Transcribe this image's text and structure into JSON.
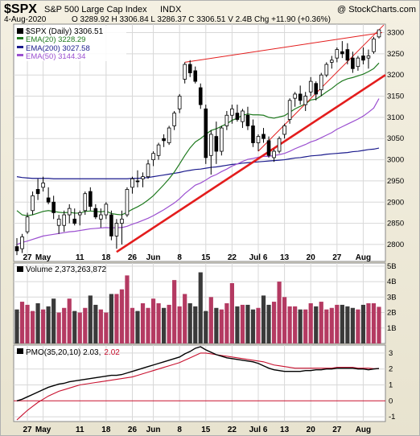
{
  "header": {
    "symbol": "$SPX",
    "name": "S&P 500 Large Cap Index",
    "exchange": "INDX",
    "copyright": "@ StockCharts.com",
    "date": "4-Aug-2020",
    "ohlc_text": "O 3289.92  H 3306.84  L 3286.37  C 3306.51  V 2.4B  Chg +11.90 (+0.36%)"
  },
  "legend": {
    "price": "$SPX (Daily) 3306.51",
    "ema20": "EMA(20) 3228.29",
    "ema200": "EMA(200) 3027.58",
    "ema50": "EMA(50) 3144.34",
    "volume": "Volume 2,373,263,872",
    "pmo": "PMO(35,20,10) 2.03,",
    "pmo_signal": "2.02"
  },
  "colors": {
    "up_candle": "#ffffff",
    "down_candle": "#000000",
    "ema20": "#1f7a1f",
    "ema200": "#1a1a8c",
    "ema50": "#9b4fd0",
    "trendline": "#e31c1c",
    "thin_channel": "#e31c1c",
    "vol_up": "#b43a62",
    "vol_down": "#3a3a3a",
    "pmo": "#000000",
    "pmo_signal": "#c8102e",
    "zero_line": "#c8102e"
  },
  "chart_data": {
    "type": "candlestick",
    "x_tick_labels": [
      "27",
      "May",
      "11",
      "18",
      "26",
      "Jun",
      "8",
      "15",
      "22",
      "Jul 6",
      "13",
      "20",
      "27",
      "Aug"
    ],
    "price_ticks": [
      "2800",
      "2850",
      "2900",
      "2950",
      "3000",
      "3050",
      "3100",
      "3150",
      "3200",
      "3250",
      "3300"
    ],
    "price_ylim": [
      2760,
      3320
    ],
    "candles": [
      {
        "o": 2795,
        "h": 2815,
        "l": 2775,
        "c": 2785
      },
      {
        "o": 2790,
        "h": 2825,
        "l": 2780,
        "c": 2818
      },
      {
        "o": 2830,
        "h": 2875,
        "l": 2825,
        "c": 2865
      },
      {
        "o": 2880,
        "h": 2925,
        "l": 2870,
        "c": 2915
      },
      {
        "o": 2930,
        "h": 2955,
        "l": 2905,
        "c": 2920
      },
      {
        "o": 2935,
        "h": 2960,
        "l": 2925,
        "c": 2945
      },
      {
        "o": 2910,
        "h": 2935,
        "l": 2895,
        "c": 2900
      },
      {
        "o": 2900,
        "h": 2915,
        "l": 2860,
        "c": 2875
      },
      {
        "o": 2845,
        "h": 2870,
        "l": 2825,
        "c": 2860
      },
      {
        "o": 2845,
        "h": 2880,
        "l": 2830,
        "c": 2870
      },
      {
        "o": 2870,
        "h": 2895,
        "l": 2850,
        "c": 2885
      },
      {
        "o": 2860,
        "h": 2885,
        "l": 2845,
        "c": 2850
      },
      {
        "o": 2870,
        "h": 2880,
        "l": 2845,
        "c": 2875
      },
      {
        "o": 2880,
        "h": 2925,
        "l": 2870,
        "c": 2920
      },
      {
        "o": 2925,
        "h": 2935,
        "l": 2880,
        "c": 2890
      },
      {
        "o": 2885,
        "h": 2895,
        "l": 2860,
        "c": 2865
      },
      {
        "o": 2860,
        "h": 2885,
        "l": 2840,
        "c": 2870
      },
      {
        "o": 2870,
        "h": 2900,
        "l": 2860,
        "c": 2895
      },
      {
        "o": 2870,
        "h": 2880,
        "l": 2810,
        "c": 2820
      },
      {
        "o": 2820,
        "h": 2860,
        "l": 2790,
        "c": 2850
      },
      {
        "o": 2850,
        "h": 2880,
        "l": 2800,
        "c": 2860
      },
      {
        "o": 2870,
        "h": 2935,
        "l": 2865,
        "c": 2930
      },
      {
        "o": 2935,
        "h": 2960,
        "l": 2920,
        "c": 2955
      },
      {
        "o": 2950,
        "h": 2975,
        "l": 2935,
        "c": 2948
      },
      {
        "o": 2955,
        "h": 2970,
        "l": 2935,
        "c": 2960
      },
      {
        "o": 2960,
        "h": 3000,
        "l": 2955,
        "c": 2990
      },
      {
        "o": 3000,
        "h": 3020,
        "l": 2985,
        "c": 3015
      },
      {
        "o": 3010,
        "h": 3040,
        "l": 3000,
        "c": 3035
      },
      {
        "o": 3050,
        "h": 3060,
        "l": 3030,
        "c": 3045
      },
      {
        "o": 3040,
        "h": 3080,
        "l": 3035,
        "c": 3075
      },
      {
        "o": 3080,
        "h": 3115,
        "l": 3070,
        "c": 3110
      },
      {
        "o": 3120,
        "h": 3155,
        "l": 3110,
        "c": 3150
      },
      {
        "o": 3190,
        "h": 3230,
        "l": 3180,
        "c": 3225
      },
      {
        "o": 3225,
        "h": 3235,
        "l": 3195,
        "c": 3205
      },
      {
        "o": 3210,
        "h": 3220,
        "l": 3180,
        "c": 3185
      },
      {
        "o": 3170,
        "h": 3180,
        "l": 3120,
        "c": 3130
      },
      {
        "o": 3120,
        "h": 3130,
        "l": 2990,
        "c": 3005
      },
      {
        "o": 3010,
        "h": 3070,
        "l": 2965,
        "c": 3060
      },
      {
        "o": 3055,
        "h": 3090,
        "l": 2990,
        "c": 3020
      },
      {
        "o": 3020,
        "h": 3080,
        "l": 3010,
        "c": 3075
      },
      {
        "o": 3080,
        "h": 3115,
        "l": 3070,
        "c": 3105
      },
      {
        "o": 3105,
        "h": 3130,
        "l": 3085,
        "c": 3120
      },
      {
        "o": 3110,
        "h": 3130,
        "l": 3090,
        "c": 3095
      },
      {
        "o": 3090,
        "h": 3120,
        "l": 3075,
        "c": 3115
      },
      {
        "o": 3105,
        "h": 3125,
        "l": 3070,
        "c": 3080
      },
      {
        "o": 3080,
        "h": 3095,
        "l": 3030,
        "c": 3040
      },
      {
        "o": 3040,
        "h": 3060,
        "l": 3020,
        "c": 3055
      },
      {
        "o": 3060,
        "h": 3075,
        "l": 3040,
        "c": 3050
      },
      {
        "o": 3045,
        "h": 3055,
        "l": 3005,
        "c": 3010
      },
      {
        "o": 3005,
        "h": 3025,
        "l": 2995,
        "c": 3020
      },
      {
        "o": 3020,
        "h": 3055,
        "l": 3015,
        "c": 3050
      },
      {
        "o": 3060,
        "h": 3085,
        "l": 3050,
        "c": 3080
      },
      {
        "o": 3095,
        "h": 3145,
        "l": 3085,
        "c": 3140
      },
      {
        "o": 3145,
        "h": 3160,
        "l": 3125,
        "c": 3155
      },
      {
        "o": 3155,
        "h": 3175,
        "l": 3130,
        "c": 3140
      },
      {
        "o": 3130,
        "h": 3160,
        "l": 3115,
        "c": 3150
      },
      {
        "o": 3160,
        "h": 3195,
        "l": 3150,
        "c": 3185
      },
      {
        "o": 3180,
        "h": 3185,
        "l": 3140,
        "c": 3155
      },
      {
        "o": 3165,
        "h": 3205,
        "l": 3150,
        "c": 3200
      },
      {
        "o": 3200,
        "h": 3230,
        "l": 3195,
        "c": 3225
      },
      {
        "o": 3230,
        "h": 3245,
        "l": 3215,
        "c": 3235
      },
      {
        "o": 3240,
        "h": 3265,
        "l": 3230,
        "c": 3260
      },
      {
        "o": 3255,
        "h": 3280,
        "l": 3240,
        "c": 3250
      },
      {
        "o": 3260,
        "h": 3275,
        "l": 3225,
        "c": 3235
      },
      {
        "o": 3240,
        "h": 3255,
        "l": 3205,
        "c": 3215
      },
      {
        "o": 3220,
        "h": 3245,
        "l": 3210,
        "c": 3240
      },
      {
        "o": 3245,
        "h": 3265,
        "l": 3225,
        "c": 3235
      },
      {
        "o": 3240,
        "h": 3260,
        "l": 3215,
        "c": 3245
      },
      {
        "o": 3255,
        "h": 3290,
        "l": 3250,
        "c": 3285
      },
      {
        "o": 3289.92,
        "h": 3306.84,
        "l": 3286.37,
        "c": 3306.51
      }
    ],
    "ema20": [
      2880,
      2870,
      2868,
      2870,
      2874,
      2878,
      2880,
      2878,
      2876,
      2875,
      2876,
      2874,
      2874,
      2878,
      2879,
      2878,
      2877,
      2879,
      2873,
      2871,
      2870,
      2876,
      2883,
      2889,
      2896,
      2905,
      2915,
      2928,
      2941,
      2955,
      2971,
      2990,
      3010,
      3028,
      3042,
      3050,
      3060,
      3069,
      3073,
      3079,
      3085,
      3093,
      3098,
      3105,
      3108,
      3106,
      3106,
      3105,
      3100,
      3098,
      3101,
      3104,
      3112,
      3120,
      3126,
      3132,
      3141,
      3143,
      3151,
      3160,
      3168,
      3178,
      3186,
      3191,
      3194,
      3198,
      3202,
      3208,
      3215,
      3228.29
    ],
    "ema50": [
      2800,
      2805,
      2808,
      2812,
      2816,
      2820,
      2822,
      2824,
      2826,
      2828,
      2830,
      2831,
      2833,
      2835,
      2837,
      2838,
      2839,
      2840,
      2839,
      2840,
      2840,
      2843,
      2848,
      2852,
      2857,
      2862,
      2868,
      2875,
      2882,
      2890,
      2898,
      2908,
      2920,
      2930,
      2940,
      2945,
      2952,
      2960,
      2965,
      2972,
      2978,
      2985,
      2990,
      2996,
      3001,
      3003,
      3006,
      3008,
      3008,
      3010,
      3012,
      3015,
      3020,
      3026,
      3031,
      3036,
      3042,
      3046,
      3052,
      3058,
      3064,
      3072,
      3078,
      3084,
      3090,
      3096,
      3103,
      3112,
      3122,
      3144.34
    ],
    "ema200": [
      2960,
      2958,
      2957,
      2956,
      2956,
      2956,
      2956,
      2955,
      2955,
      2955,
      2955,
      2955,
      2955,
      2955,
      2955,
      2955,
      2955,
      2955,
      2955,
      2955,
      2955,
      2955,
      2956,
      2956,
      2957,
      2958,
      2960,
      2962,
      2964,
      2966,
      2968,
      2970,
      2973,
      2975,
      2977,
      2978,
      2980,
      2982,
      2983,
      2985,
      2987,
      2989,
      2990,
      2992,
      2993,
      2994,
      2995,
      2996,
      2997,
      2998,
      2999,
      3000,
      3002,
      3004,
      3005,
      3007,
      3009,
      3010,
      3011,
      3013,
      3014,
      3015,
      3016,
      3017,
      3019,
      3020,
      3022,
      3024,
      3025,
      3027.58
    ],
    "volume_ticks": [
      "1B",
      "2B",
      "3B",
      "4B",
      "5B"
    ],
    "volume_ylim": [
      0,
      5.2
    ],
    "volume": [
      2.2,
      2.7,
      2.5,
      2.1,
      2.6,
      2.2,
      2.4,
      2.9,
      2.0,
      2.3,
      2.9,
      2.1,
      2.0,
      2.3,
      3.1,
      2.5,
      2.2,
      2.0,
      3.2,
      3.2,
      3.5,
      4.4,
      2.3,
      2.1,
      2.6,
      2.3,
      2.9,
      2.6,
      2.3,
      2.5,
      4.1,
      2.4,
      3.2,
      2.6,
      2.4,
      4.6,
      2.1,
      3.0,
      2.3,
      2.2,
      2.6,
      3.9,
      2.4,
      2.5,
      2.5,
      2.2,
      2.3,
      3.1,
      2.5,
      2.7,
      4.0,
      3.0,
      2.4,
      2.4,
      2.2,
      2.2,
      2.6,
      2.4,
      2.7,
      2.2,
      2.3,
      2.5,
      2.5,
      2.4,
      2.3,
      2.2,
      2.5,
      2.6,
      2.6,
      2.37
    ],
    "pmo_ticks": [
      "-1",
      "0",
      "1",
      "2",
      "3"
    ],
    "pmo_ylim": [
      -1.3,
      3.5
    ],
    "pmo": [
      0.0,
      0.1,
      0.25,
      0.4,
      0.55,
      0.7,
      0.85,
      0.95,
      1.05,
      1.1,
      1.2,
      1.25,
      1.3,
      1.35,
      1.4,
      1.45,
      1.5,
      1.55,
      1.6,
      1.6,
      1.65,
      1.75,
      1.85,
      1.95,
      2.05,
      2.15,
      2.25,
      2.35,
      2.45,
      2.55,
      2.65,
      2.75,
      2.95,
      3.1,
      3.3,
      3.4,
      3.2,
      3.05,
      2.9,
      2.8,
      2.7,
      2.65,
      2.6,
      2.55,
      2.5,
      2.45,
      2.35,
      2.2,
      2.05,
      1.95,
      1.9,
      1.85,
      1.85,
      1.85,
      1.85,
      1.9,
      1.9,
      1.95,
      1.95,
      2.0,
      2.0,
      2.05,
      2.05,
      2.05,
      2.05,
      2.0,
      2.0,
      1.95,
      2.0,
      2.03
    ],
    "pmo_signal": [
      -1.2,
      -0.9,
      -0.6,
      -0.35,
      -0.1,
      0.1,
      0.3,
      0.45,
      0.6,
      0.7,
      0.8,
      0.9,
      1.0,
      1.05,
      1.1,
      1.15,
      1.2,
      1.25,
      1.3,
      1.35,
      1.4,
      1.45,
      1.5,
      1.6,
      1.7,
      1.8,
      1.9,
      2.0,
      2.1,
      2.2,
      2.3,
      2.4,
      2.55,
      2.7,
      2.85,
      3.0,
      3.0,
      2.95,
      2.9,
      2.85,
      2.8,
      2.75,
      2.7,
      2.65,
      2.6,
      2.55,
      2.5,
      2.45,
      2.35,
      2.25,
      2.2,
      2.15,
      2.1,
      2.05,
      2.05,
      2.05,
      2.05,
      2.05,
      2.05,
      2.05,
      2.05,
      2.1,
      2.1,
      2.1,
      2.1,
      2.05,
      2.05,
      2.05,
      2.02,
      2.02
    ]
  }
}
